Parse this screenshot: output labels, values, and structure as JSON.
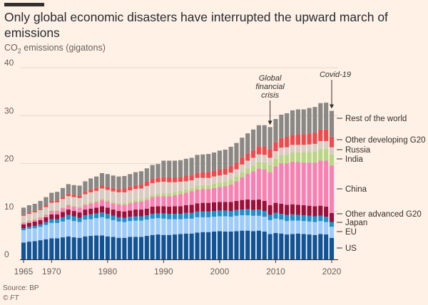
{
  "header": {
    "title": "Only global economic disasters have interrupted the upward march of emissions",
    "subtitle_main": "CO",
    "subtitle_sub": "2",
    "subtitle_rest": " emissions (gigatons)"
  },
  "footer": {
    "source": "Source: BP",
    "copyright": "© FT"
  },
  "chart_data": {
    "type": "bar",
    "stacked": true,
    "title": "Only global economic disasters have interrupted the upward march of emissions",
    "ylabel": "CO2 emissions (gigatons)",
    "xlabel": "",
    "ylim": [
      0,
      40
    ],
    "yticks": [
      0,
      10,
      20,
      30,
      40
    ],
    "xticks": [
      1965,
      1970,
      1980,
      1990,
      2000,
      2010,
      2020
    ],
    "grid": true,
    "legend_placement": "right",
    "x": [
      1965,
      1966,
      1967,
      1968,
      1969,
      1970,
      1971,
      1972,
      1973,
      1974,
      1975,
      1976,
      1977,
      1978,
      1979,
      1980,
      1981,
      1982,
      1983,
      1984,
      1985,
      1986,
      1987,
      1988,
      1989,
      1990,
      1991,
      1992,
      1993,
      1994,
      1995,
      1996,
      1997,
      1998,
      1999,
      2000,
      2001,
      2002,
      2003,
      2004,
      2005,
      2006,
      2007,
      2008,
      2009,
      2010,
      2011,
      2012,
      2013,
      2014,
      2015,
      2016,
      2017,
      2018,
      2019,
      2020
    ],
    "series": [
      {
        "name": "US",
        "color": "#0f5499",
        "values": [
          3.5,
          3.7,
          3.8,
          4.0,
          4.2,
          4.4,
          4.4,
          4.6,
          4.8,
          4.6,
          4.5,
          4.8,
          4.9,
          5.0,
          5.0,
          4.8,
          4.7,
          4.5,
          4.5,
          4.7,
          4.7,
          4.7,
          4.9,
          5.1,
          5.2,
          5.1,
          5.1,
          5.2,
          5.3,
          5.4,
          5.4,
          5.6,
          5.7,
          5.7,
          5.8,
          5.9,
          5.8,
          5.8,
          5.9,
          6.0,
          6.0,
          5.9,
          6.0,
          5.8,
          5.3,
          5.5,
          5.4,
          5.2,
          5.3,
          5.4,
          5.3,
          5.2,
          5.1,
          5.3,
          5.2,
          4.5
        ]
      },
      {
        "name": "EU",
        "color": "#99ccff",
        "values": [
          2.6,
          2.7,
          2.7,
          2.8,
          3.0,
          3.2,
          3.2,
          3.3,
          3.5,
          3.4,
          3.3,
          3.5,
          3.5,
          3.6,
          3.8,
          3.7,
          3.5,
          3.4,
          3.3,
          3.3,
          3.4,
          3.4,
          3.4,
          3.4,
          3.4,
          3.4,
          3.3,
          3.2,
          3.1,
          3.1,
          3.1,
          3.2,
          3.1,
          3.1,
          3.1,
          3.1,
          3.2,
          3.1,
          3.2,
          3.2,
          3.2,
          3.2,
          3.1,
          3.1,
          2.9,
          3.0,
          2.9,
          2.8,
          2.8,
          2.7,
          2.7,
          2.7,
          2.7,
          2.7,
          2.6,
          2.3
        ]
      },
      {
        "name": "Japan",
        "color": "#1e8fcf",
        "values": [
          0.4,
          0.4,
          0.5,
          0.5,
          0.6,
          0.8,
          0.8,
          0.9,
          1.0,
          1.0,
          0.9,
          0.9,
          1.0,
          1.0,
          1.0,
          1.0,
          0.9,
          0.9,
          0.9,
          0.9,
          0.9,
          0.9,
          0.9,
          1.0,
          1.0,
          1.1,
          1.1,
          1.1,
          1.1,
          1.2,
          1.2,
          1.2,
          1.2,
          1.2,
          1.2,
          1.2,
          1.2,
          1.2,
          1.2,
          1.2,
          1.3,
          1.2,
          1.3,
          1.2,
          1.1,
          1.2,
          1.2,
          1.3,
          1.3,
          1.2,
          1.2,
          1.2,
          1.2,
          1.1,
          1.1,
          1.0
        ]
      },
      {
        "name": "Other advanced G20",
        "color": "#990f3d",
        "values": [
          0.8,
          0.8,
          0.9,
          0.9,
          1.0,
          1.0,
          1.0,
          1.1,
          1.1,
          1.1,
          1.1,
          1.2,
          1.2,
          1.2,
          1.3,
          1.3,
          1.3,
          1.3,
          1.3,
          1.3,
          1.4,
          1.4,
          1.4,
          1.5,
          1.5,
          1.5,
          1.5,
          1.6,
          1.6,
          1.6,
          1.7,
          1.7,
          1.8,
          1.8,
          1.8,
          1.8,
          1.8,
          1.9,
          1.9,
          2.0,
          2.0,
          2.1,
          2.1,
          2.1,
          2.0,
          2.1,
          2.1,
          2.1,
          2.1,
          2.1,
          2.1,
          2.1,
          2.1,
          2.1,
          2.1,
          1.9
        ]
      },
      {
        "name": "China",
        "color": "#f781b6",
        "values": [
          0.4,
          0.4,
          0.4,
          0.5,
          0.5,
          0.7,
          0.7,
          0.8,
          0.9,
          0.9,
          1.0,
          1.0,
          1.1,
          1.2,
          1.3,
          1.3,
          1.3,
          1.4,
          1.4,
          1.5,
          1.6,
          1.7,
          1.8,
          2.0,
          2.1,
          2.1,
          2.2,
          2.3,
          2.5,
          2.6,
          2.8,
          2.9,
          2.9,
          2.9,
          3.0,
          3.1,
          3.3,
          3.6,
          4.1,
          4.7,
          5.4,
          6.0,
          6.5,
          6.6,
          6.9,
          7.6,
          8.4,
          8.6,
          8.9,
          8.9,
          8.9,
          9.0,
          9.1,
          9.4,
          9.6,
          9.9
        ]
      },
      {
        "name": "India",
        "color": "#b8d687",
        "values": [
          0.2,
          0.2,
          0.2,
          0.2,
          0.2,
          0.2,
          0.2,
          0.2,
          0.2,
          0.2,
          0.2,
          0.3,
          0.3,
          0.3,
          0.3,
          0.3,
          0.3,
          0.3,
          0.4,
          0.4,
          0.4,
          0.4,
          0.5,
          0.5,
          0.5,
          0.6,
          0.6,
          0.6,
          0.7,
          0.7,
          0.7,
          0.8,
          0.8,
          0.8,
          0.9,
          0.9,
          0.9,
          1.0,
          1.0,
          1.1,
          1.1,
          1.2,
          1.3,
          1.4,
          1.5,
          1.6,
          1.7,
          1.8,
          1.9,
          2.0,
          2.1,
          2.2,
          2.3,
          2.4,
          2.4,
          2.3
        ]
      },
      {
        "name": "Russia",
        "color": "#d8ccc4",
        "values": [
          1.2,
          1.3,
          1.3,
          1.4,
          1.4,
          1.5,
          1.6,
          1.7,
          1.7,
          1.8,
          1.8,
          1.9,
          2.0,
          2.0,
          2.1,
          2.1,
          2.2,
          2.2,
          2.2,
          2.3,
          2.3,
          2.3,
          2.4,
          2.4,
          2.4,
          2.4,
          2.3,
          2.1,
          1.9,
          1.7,
          1.6,
          1.6,
          1.5,
          1.5,
          1.5,
          1.5,
          1.5,
          1.5,
          1.5,
          1.6,
          1.6,
          1.6,
          1.6,
          1.6,
          1.5,
          1.6,
          1.6,
          1.6,
          1.6,
          1.6,
          1.6,
          1.6,
          1.6,
          1.7,
          1.7,
          1.5
        ]
      },
      {
        "name": "Other developing G20",
        "color": "#ee4a4f",
        "values": [
          0.3,
          0.3,
          0.3,
          0.3,
          0.4,
          0.4,
          0.4,
          0.4,
          0.5,
          0.5,
          0.5,
          0.5,
          0.6,
          0.6,
          0.6,
          0.7,
          0.7,
          0.7,
          0.8,
          0.8,
          0.8,
          0.8,
          0.9,
          0.9,
          0.9,
          1.0,
          1.0,
          1.0,
          1.0,
          1.1,
          1.1,
          1.1,
          1.2,
          1.2,
          1.2,
          1.3,
          1.3,
          1.4,
          1.4,
          1.5,
          1.5,
          1.6,
          1.7,
          1.7,
          1.8,
          1.9,
          2.0,
          2.1,
          2.1,
          2.2,
          2.2,
          2.3,
          2.3,
          2.4,
          2.4,
          2.2
        ]
      },
      {
        "name": "Rest of the world",
        "color": "#898886",
        "values": [
          1.4,
          1.5,
          1.5,
          1.6,
          1.7,
          1.7,
          1.8,
          1.9,
          2.0,
          2.0,
          2.1,
          2.2,
          2.3,
          2.4,
          2.6,
          2.6,
          2.6,
          2.6,
          2.6,
          2.6,
          2.7,
          2.8,
          2.8,
          2.9,
          2.9,
          3.4,
          3.5,
          3.5,
          3.5,
          3.6,
          3.6,
          3.7,
          3.7,
          3.8,
          3.8,
          3.9,
          3.9,
          4.0,
          4.1,
          4.1,
          4.2,
          4.3,
          4.4,
          4.5,
          4.6,
          4.8,
          4.9,
          5.0,
          5.1,
          5.2,
          5.2,
          5.3,
          5.4,
          5.5,
          5.6,
          5.4
        ]
      }
    ],
    "annotations": [
      {
        "lines": [
          "Global",
          "financial",
          "crisis"
        ],
        "x": 2009
      },
      {
        "lines": [
          "Covid-19"
        ],
        "x": 2020
      }
    ]
  }
}
